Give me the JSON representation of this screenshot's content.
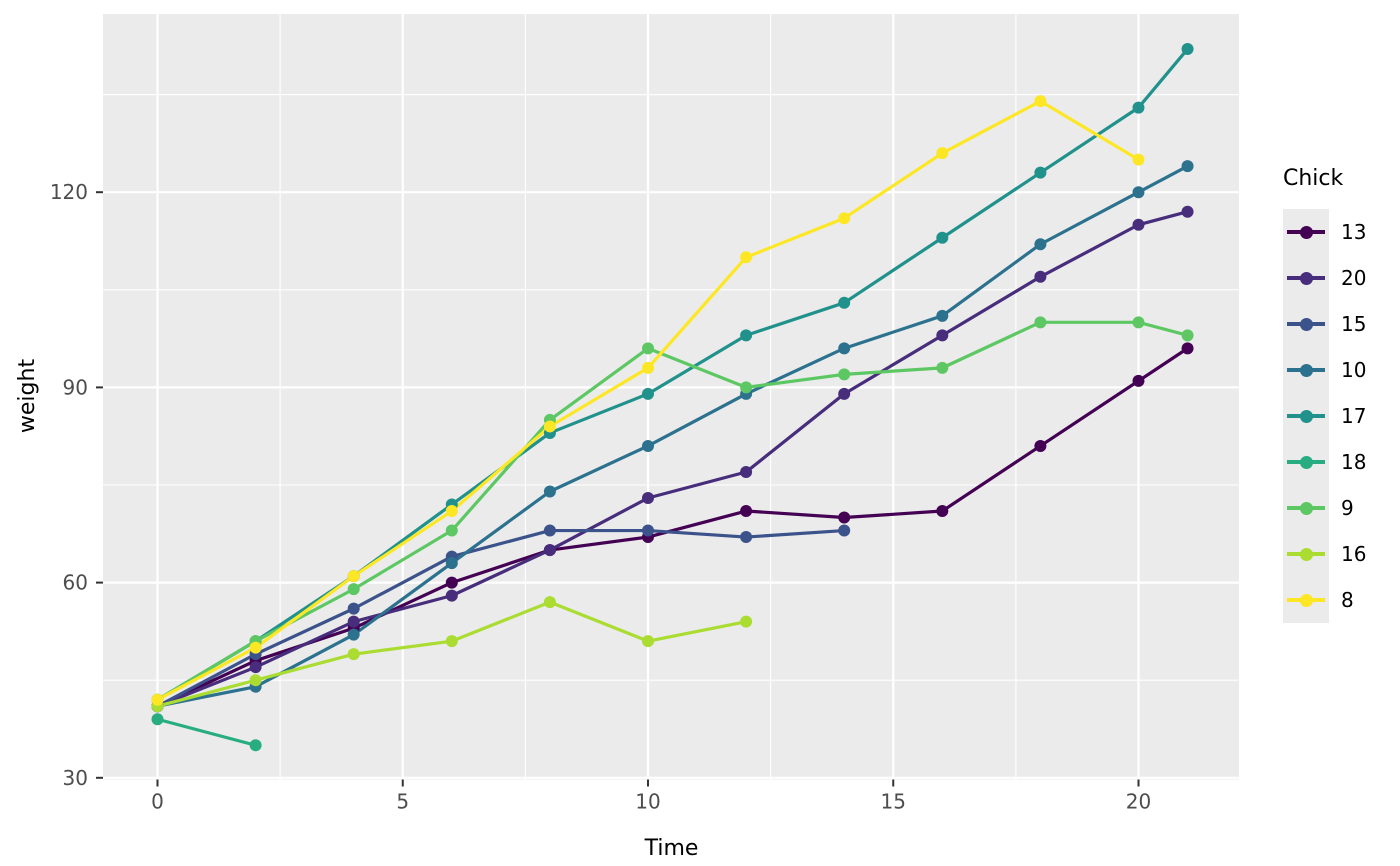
{
  "chart_data": {
    "type": "line",
    "title": "",
    "xlabel": "Time",
    "ylabel": "weight",
    "legend_title": "Chick",
    "legend_position": "right",
    "grid": true,
    "panel_bg": "#EBEBEB",
    "grid_color": "#FFFFFF",
    "axis_text_color": "#4D4D4D",
    "tick_mark_color": "#333333",
    "xlim": [
      -1.1,
      22.1
    ],
    "ylim": [
      29.6,
      147.4
    ],
    "x_ticks": [
      0,
      5,
      10,
      15,
      20
    ],
    "x_tick_labels": [
      "0",
      "5",
      "10",
      "15",
      "20"
    ],
    "x_minor_ticks": [
      2.5,
      7.5,
      12.5,
      17.5
    ],
    "y_ticks": [
      30,
      60,
      90,
      120
    ],
    "y_tick_labels": [
      "30",
      "60",
      "90",
      "120"
    ],
    "y_minor_ticks": [
      45,
      75,
      105,
      135
    ],
    "series": [
      {
        "name": "13",
        "color": "#440154",
        "x": [
          0,
          2,
          4,
          6,
          8,
          10,
          12,
          14,
          16,
          18,
          20,
          21
        ],
        "y": [
          41,
          48,
          53,
          60,
          65,
          67,
          71,
          70,
          71,
          81,
          91,
          96
        ]
      },
      {
        "name": "20",
        "color": "#472D7B",
        "x": [
          0,
          2,
          4,
          6,
          8,
          10,
          12,
          14,
          16,
          18,
          20,
          21
        ],
        "y": [
          41,
          47,
          54,
          58,
          65,
          73,
          77,
          89,
          98,
          107,
          115,
          117
        ]
      },
      {
        "name": "15",
        "color": "#3B528B",
        "x": [
          0,
          2,
          4,
          6,
          8,
          10,
          12,
          14
        ],
        "y": [
          41,
          49,
          56,
          64,
          68,
          68,
          67,
          68
        ]
      },
      {
        "name": "10",
        "color": "#2C728E",
        "x": [
          0,
          2,
          4,
          6,
          8,
          10,
          12,
          14,
          16,
          18,
          20,
          21
        ],
        "y": [
          41,
          44,
          52,
          63,
          74,
          81,
          89,
          96,
          101,
          112,
          120,
          124
        ]
      },
      {
        "name": "17",
        "color": "#21918C",
        "x": [
          0,
          2,
          4,
          6,
          8,
          10,
          12,
          14,
          16,
          18,
          20,
          21
        ],
        "y": [
          42,
          51,
          61,
          72,
          83,
          89,
          98,
          103,
          113,
          123,
          133,
          142
        ]
      },
      {
        "name": "18",
        "color": "#27AD81",
        "x": [
          0,
          2
        ],
        "y": [
          39,
          35
        ]
      },
      {
        "name": "9",
        "color": "#5DC863",
        "x": [
          0,
          2,
          4,
          6,
          8,
          10,
          12,
          14,
          16,
          18,
          20,
          21
        ],
        "y": [
          42,
          51,
          59,
          68,
          85,
          96,
          90,
          92,
          93,
          100,
          100,
          98
        ]
      },
      {
        "name": "16",
        "color": "#AADC32",
        "x": [
          0,
          2,
          4,
          6,
          8,
          10,
          12
        ],
        "y": [
          41,
          45,
          49,
          51,
          57,
          51,
          54
        ]
      },
      {
        "name": "8",
        "color": "#FDE725",
        "x": [
          0,
          2,
          4,
          6,
          8,
          10,
          12,
          14,
          16,
          18,
          20
        ],
        "y": [
          42,
          50,
          61,
          71,
          84,
          93,
          110,
          116,
          126,
          134,
          125
        ]
      }
    ]
  }
}
